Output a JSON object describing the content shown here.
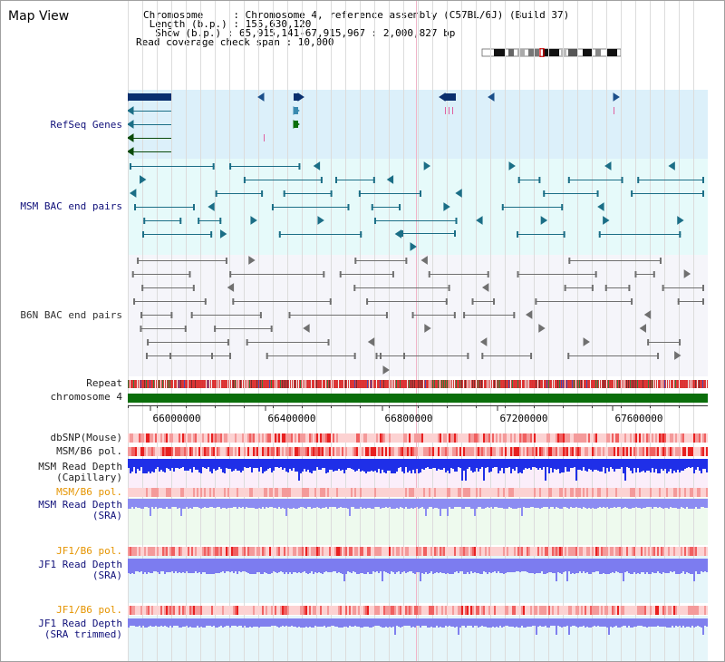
{
  "title": "Map View",
  "info": {
    "chromosome": "Chromosome     : Chromosome 4, reference assembly (C57BL/6J) (Build 37)",
    "length": " Length (b.p.) : 155,630,120",
    "show": "  Show (b.p.) : 65,915,141-67,915,967 : 2,000,827 bp",
    "coverage": "Read coverage check span : 10,000"
  },
  "tracks": {
    "refseq": "RefSeq Genes",
    "msm_bac": "MSM BAC end pairs",
    "b6n_bac": "B6N BAC end pairs",
    "repeat": "Repeat",
    "chromosome": "chromosome 4",
    "dbsnp": "dbSNP(Mouse)",
    "msm_b6_pol1": "MSM/B6 pol.",
    "msm_depth_cap_1": "MSM Read Depth",
    "msm_depth_cap_2": "(Capillary)",
    "msm_b6_pol2": "MSM/B6 pol.",
    "msm_depth_sra_1": "MSM Read Depth",
    "msm_depth_sra_2": "(SRA)",
    "jf1_b6_pol1": "JF1/B6 pol.",
    "jf1_depth_sra_1": "JF1 Read Depth",
    "jf1_depth_sra_2": "(SRA)",
    "jf1_b6_pol2": "JF1/B6 pol.",
    "jf1_depth_trim_1": "JF1 Read Depth",
    "jf1_depth_trim_2": "(SRA trimmed)"
  },
  "axis_ticks": [
    "66000000",
    "66400000",
    "66800000",
    "67200000",
    "67600000"
  ],
  "colors": {
    "refseq_bg": "#dcf0fa",
    "msm_bg": "#e6fafa",
    "b6n_bg": "#f5f5fa",
    "gene_navy": "#0a2f6e",
    "bac_teal": "#1b6e86",
    "b6n_gray": "#707070",
    "chromosome_green": "#0a6e0a",
    "depth_blue": "#1f2fe8",
    "depth_light": "#8c8cf2",
    "pol_red": "#f24848"
  }
}
